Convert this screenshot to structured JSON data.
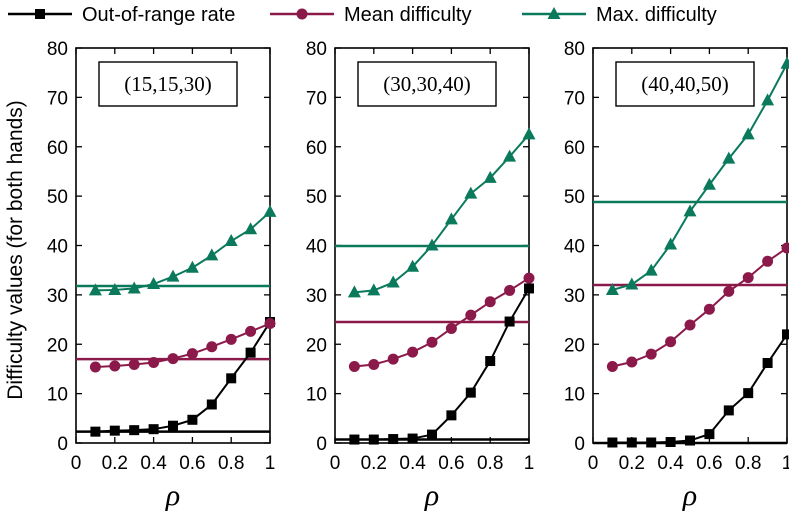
{
  "ylabel": "Difficulty values (for both hands)",
  "xlabel": "ρ",
  "legend": {
    "placement": "top",
    "entries": [
      {
        "label": "Out-of-range rate",
        "color": "#000000",
        "marker": "square"
      },
      {
        "label": "Mean difficulty",
        "color": "#8b1a4a",
        "marker": "circle"
      },
      {
        "label": "Max. difficulty",
        "color": "#0b7a5c",
        "marker": "triangle"
      }
    ]
  },
  "chart_data": [
    {
      "type": "line",
      "title": "(15,15,30)",
      "x": [
        0.1,
        0.2,
        0.3,
        0.4,
        0.5,
        0.6,
        0.7,
        0.8,
        0.9,
        1.0
      ],
      "xlim": [
        0,
        1
      ],
      "ylim": [
        0,
        80
      ],
      "xticks": [
        "0",
        "0.2",
        "0.4",
        "0.6",
        "0.8",
        "1"
      ],
      "yticks": [
        "0",
        "10",
        "20",
        "30",
        "40",
        "50",
        "60",
        "70",
        "80"
      ],
      "series": [
        {
          "name": "Out-of-range rate",
          "color": "#000000",
          "marker": "square",
          "values": [
            2.3,
            2.5,
            2.6,
            2.8,
            3.5,
            4.7,
            7.8,
            13.1,
            18.3,
            24.5
          ]
        },
        {
          "name": "Mean difficulty",
          "color": "#8b1a4a",
          "marker": "circle",
          "values": [
            15.4,
            15.6,
            15.9,
            16.3,
            17.1,
            18.1,
            19.5,
            21.0,
            22.6,
            24.2
          ]
        },
        {
          "name": "Max. difficulty",
          "color": "#0b7a5c",
          "marker": "triangle",
          "values": [
            30.9,
            31.0,
            31.3,
            32.2,
            33.7,
            35.5,
            38.0,
            40.9,
            43.3,
            46.8
          ]
        }
      ],
      "hlines": [
        {
          "series": "Out-of-range rate",
          "value": 2.3
        },
        {
          "series": "Mean difficulty",
          "value": 17.0
        },
        {
          "series": "Max. difficulty",
          "value": 31.8
        }
      ]
    },
    {
      "type": "line",
      "title": "(30,30,40)",
      "x": [
        0.1,
        0.2,
        0.3,
        0.4,
        0.5,
        0.6,
        0.7,
        0.8,
        0.9,
        1.0
      ],
      "xlim": [
        0,
        1
      ],
      "ylim": [
        0,
        80
      ],
      "xticks": [
        "0",
        "0.2",
        "0.4",
        "0.6",
        "0.8",
        "1"
      ],
      "yticks": [
        "0",
        "10",
        "20",
        "30",
        "40",
        "50",
        "60",
        "70",
        "80"
      ],
      "series": [
        {
          "name": "Out-of-range rate",
          "color": "#000000",
          "marker": "square",
          "values": [
            0.7,
            0.7,
            0.8,
            0.9,
            1.7,
            5.6,
            10.2,
            16.6,
            24.6,
            31.3
          ]
        },
        {
          "name": "Mean difficulty",
          "color": "#8b1a4a",
          "marker": "circle",
          "values": [
            15.5,
            15.9,
            17.0,
            18.4,
            20.4,
            23.2,
            25.9,
            28.6,
            30.9,
            33.4
          ]
        },
        {
          "name": "Max. difficulty",
          "color": "#0b7a5c",
          "marker": "triangle",
          "values": [
            30.5,
            30.9,
            32.5,
            35.7,
            40.0,
            45.3,
            50.5,
            53.7,
            58.0,
            62.5
          ]
        }
      ],
      "hlines": [
        {
          "series": "Out-of-range rate",
          "value": 0.7
        },
        {
          "series": "Mean difficulty",
          "value": 24.5
        },
        {
          "series": "Max. difficulty",
          "value": 39.9
        }
      ]
    },
    {
      "type": "line",
      "title": "(40,40,50)",
      "x": [
        0.1,
        0.2,
        0.3,
        0.4,
        0.5,
        0.6,
        0.7,
        0.8,
        0.9,
        1.0
      ],
      "xlim": [
        0,
        1
      ],
      "ylim": [
        0,
        80
      ],
      "xticks": [
        "0",
        "0.2",
        "0.4",
        "0.6",
        "0.8",
        "1"
      ],
      "yticks": [
        "0",
        "10",
        "20",
        "30",
        "40",
        "50",
        "60",
        "70",
        "80"
      ],
      "series": [
        {
          "name": "Out-of-range rate",
          "color": "#000000",
          "marker": "square",
          "values": [
            0.1,
            0.1,
            0.1,
            0.2,
            0.5,
            1.8,
            6.6,
            10.1,
            16.2,
            22.0
          ]
        },
        {
          "name": "Mean difficulty",
          "color": "#8b1a4a",
          "marker": "circle",
          "values": [
            15.5,
            16.4,
            18.0,
            20.5,
            23.9,
            27.1,
            30.7,
            33.5,
            36.8,
            39.5
          ]
        },
        {
          "name": "Max. difficulty",
          "color": "#0b7a5c",
          "marker": "triangle",
          "values": [
            31.0,
            32.1,
            34.9,
            40.2,
            46.9,
            52.3,
            57.6,
            62.5,
            69.4,
            76.8
          ]
        }
      ],
      "hlines": [
        {
          "series": "Out-of-range rate",
          "value": 0.0
        },
        {
          "series": "Mean difficulty",
          "value": 32.0
        },
        {
          "series": "Max. difficulty",
          "value": 48.8
        }
      ]
    }
  ]
}
